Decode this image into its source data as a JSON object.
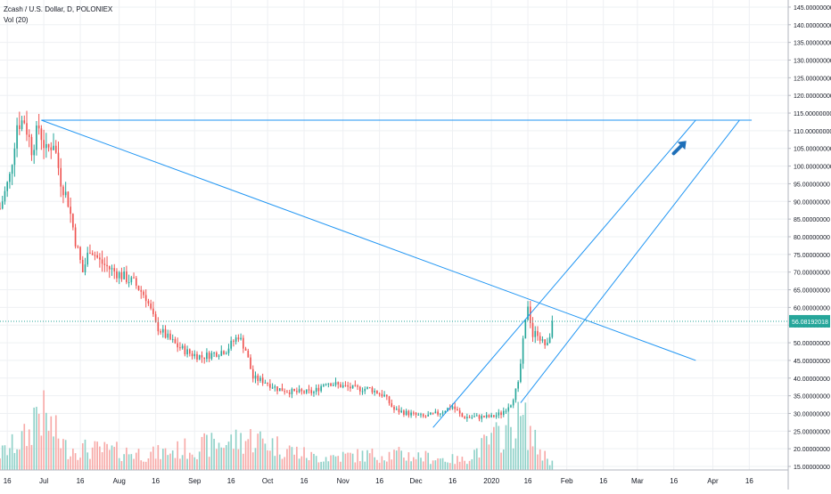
{
  "legend": {
    "symbol_line": "Zcash / U.S. Dollar, D, POLONIEX",
    "volume_line": "Vol (20)"
  },
  "colors": {
    "up": "#26a69a",
    "down": "#ef5350",
    "up_volume": "#8fd1c8",
    "down_volume": "#f7a9a7",
    "drawing": "#2196f3",
    "grid": "#eef0f3",
    "axis_text": "#131722",
    "price_tag": "#26a69a"
  },
  "icons": {
    "arrow": "arrow-up-right-icon"
  },
  "chart_data": {
    "type": "candlestick",
    "title": "Zcash / U.S. Dollar, D, POLONIEX",
    "y_axis": {
      "ylim": [
        14,
        147
      ],
      "ticks": [
        15,
        20,
        25,
        30,
        35,
        40,
        45,
        50,
        55,
        60,
        65,
        70,
        75,
        80,
        85,
        90,
        95,
        100,
        105,
        110,
        115,
        120,
        125,
        130,
        135,
        140,
        145
      ],
      "tick_labels": [
        "15.00000000",
        "20.00000000",
        "25.00000000",
        "30.00000000",
        "35.00000000",
        "40.00000000",
        "45.00000000",
        "50.00000000",
        "55.00000000",
        "60.00000000",
        "65.00000000",
        "70.00000000",
        "75.00000000",
        "80.00000000",
        "85.00000000",
        "90.00000000",
        "95.00000000",
        "100.00000000",
        "105.00000000",
        "110.00000000",
        "115.00000000",
        "120.00000000",
        "125.00000000",
        "130.00000000",
        "135.00000000",
        "140.00000000",
        "145.00000000"
      ],
      "last_price": 56.08192018,
      "last_price_label": "56.08192018"
    },
    "x_axis": {
      "start_date": "2019-06-13",
      "end_date": "2020-05-02",
      "ticks": [
        {
          "date": "2019-06-16",
          "label": "16"
        },
        {
          "date": "2019-07-01",
          "label": "Jul"
        },
        {
          "date": "2019-07-16",
          "label": "16"
        },
        {
          "date": "2019-08-01",
          "label": "Aug"
        },
        {
          "date": "2019-08-16",
          "label": "16"
        },
        {
          "date": "2019-09-01",
          "label": "Sep"
        },
        {
          "date": "2019-09-16",
          "label": "16"
        },
        {
          "date": "2019-10-01",
          "label": "Oct"
        },
        {
          "date": "2019-10-16",
          "label": "16"
        },
        {
          "date": "2019-11-01",
          "label": "Nov"
        },
        {
          "date": "2019-11-16",
          "label": "16"
        },
        {
          "date": "2019-12-01",
          "label": "Dec"
        },
        {
          "date": "2019-12-16",
          "label": "16"
        },
        {
          "date": "2020-01-01",
          "label": "2020"
        },
        {
          "date": "2020-01-16",
          "label": "16"
        },
        {
          "date": "2020-02-01",
          "label": "Feb"
        },
        {
          "date": "2020-02-16",
          "label": "16"
        },
        {
          "date": "2020-03-01",
          "label": "Mar"
        },
        {
          "date": "2020-03-16",
          "label": "16"
        },
        {
          "date": "2020-04-01",
          "label": "Apr"
        },
        {
          "date": "2020-04-16",
          "label": "16"
        }
      ]
    },
    "price_anchors": [
      {
        "date": "2019-06-13",
        "close": 88
      },
      {
        "date": "2019-06-17",
        "close": 97
      },
      {
        "date": "2019-06-20",
        "close": 112
      },
      {
        "date": "2019-06-23",
        "close": 113
      },
      {
        "date": "2019-06-26",
        "close": 105
      },
      {
        "date": "2019-06-29",
        "close": 111
      },
      {
        "date": "2019-07-02",
        "close": 104
      },
      {
        "date": "2019-07-05",
        "close": 107
      },
      {
        "date": "2019-07-08",
        "close": 96
      },
      {
        "date": "2019-07-11",
        "close": 90
      },
      {
        "date": "2019-07-14",
        "close": 79
      },
      {
        "date": "2019-07-17",
        "close": 70
      },
      {
        "date": "2019-07-20",
        "close": 77
      },
      {
        "date": "2019-07-24",
        "close": 73
      },
      {
        "date": "2019-07-28",
        "close": 71
      },
      {
        "date": "2019-08-02",
        "close": 69
      },
      {
        "date": "2019-08-07",
        "close": 67
      },
      {
        "date": "2019-08-12",
        "close": 63
      },
      {
        "date": "2019-08-16",
        "close": 55
      },
      {
        "date": "2019-08-20",
        "close": 52
      },
      {
        "date": "2019-08-25",
        "close": 49
      },
      {
        "date": "2019-08-30",
        "close": 47
      },
      {
        "date": "2019-09-04",
        "close": 46
      },
      {
        "date": "2019-09-09",
        "close": 47
      },
      {
        "date": "2019-09-14",
        "close": 48
      },
      {
        "date": "2019-09-19",
        "close": 52
      },
      {
        "date": "2019-09-22",
        "close": 48
      },
      {
        "date": "2019-09-25",
        "close": 40
      },
      {
        "date": "2019-09-30",
        "close": 39
      },
      {
        "date": "2019-10-05",
        "close": 37
      },
      {
        "date": "2019-10-12",
        "close": 36
      },
      {
        "date": "2019-10-20",
        "close": 36
      },
      {
        "date": "2019-10-25",
        "close": 39
      },
      {
        "date": "2019-10-30",
        "close": 38
      },
      {
        "date": "2019-11-06",
        "close": 37
      },
      {
        "date": "2019-11-12",
        "close": 37
      },
      {
        "date": "2019-11-18",
        "close": 35
      },
      {
        "date": "2019-11-22",
        "close": 31
      },
      {
        "date": "2019-11-28",
        "close": 30
      },
      {
        "date": "2019-12-04",
        "close": 29
      },
      {
        "date": "2019-12-10",
        "close": 30
      },
      {
        "date": "2019-12-16",
        "close": 32
      },
      {
        "date": "2019-12-20",
        "close": 29
      },
      {
        "date": "2019-12-26",
        "close": 29
      },
      {
        "date": "2020-01-01",
        "close": 29
      },
      {
        "date": "2020-01-05",
        "close": 30
      },
      {
        "date": "2020-01-09",
        "close": 33
      },
      {
        "date": "2020-01-12",
        "close": 38
      },
      {
        "date": "2020-01-14",
        "close": 50
      },
      {
        "date": "2020-01-16",
        "close": 61
      },
      {
        "date": "2020-01-18",
        "close": 52
      },
      {
        "date": "2020-01-20",
        "close": 53
      },
      {
        "date": "2020-01-22",
        "close": 50
      },
      {
        "date": "2020-01-24",
        "close": 49
      },
      {
        "date": "2020-01-26",
        "close": 56
      }
    ],
    "volume_anchors": [
      {
        "date": "2019-06-13",
        "volume": 0.25
      },
      {
        "date": "2019-06-25",
        "volume": 0.55
      },
      {
        "date": "2019-06-28",
        "volume": 1.0
      },
      {
        "date": "2019-07-10",
        "volume": 0.35
      },
      {
        "date": "2019-08-15",
        "volume": 0.25
      },
      {
        "date": "2019-09-25",
        "volume": 0.5
      },
      {
        "date": "2019-10-20",
        "volume": 0.2
      },
      {
        "date": "2019-11-22",
        "volume": 0.25
      },
      {
        "date": "2019-12-20",
        "volume": 0.15
      },
      {
        "date": "2020-01-14",
        "volume": 0.8
      },
      {
        "date": "2020-01-20",
        "volume": 0.35
      },
      {
        "date": "2020-01-26",
        "volume": 0.1
      }
    ],
    "drawings": [
      {
        "type": "horizontal_segment",
        "price": 113,
        "from": "2019-06-30",
        "to": "2020-04-17"
      },
      {
        "type": "trend_line",
        "from": {
          "date": "2019-06-30",
          "price": 113
        },
        "to": {
          "date": "2020-03-25",
          "price": 45
        }
      },
      {
        "type": "channel_line",
        "from": {
          "date": "2019-12-08",
          "price": 26
        },
        "to": {
          "date": "2020-03-25",
          "price": 113
        }
      },
      {
        "type": "channel_line",
        "from": {
          "date": "2020-01-13",
          "price": 33
        },
        "to": {
          "date": "2020-04-12",
          "price": 113
        }
      }
    ]
  }
}
